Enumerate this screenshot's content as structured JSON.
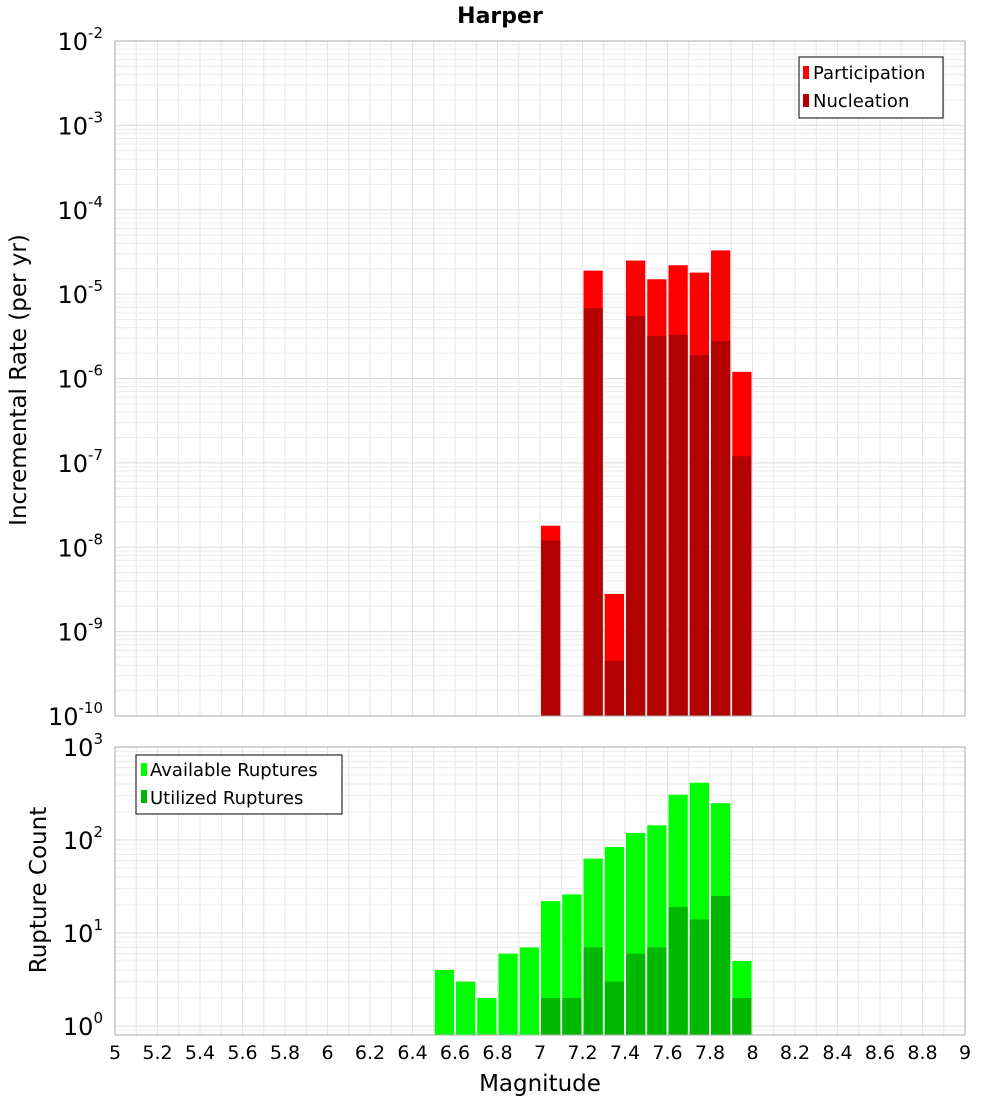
{
  "title": "Harper",
  "colors": {
    "participation": "#ff0000",
    "nucleation": "#b30000",
    "available": "#00ff00",
    "utilized": "#00b800",
    "grid": "#e4e4e4",
    "frame": "#aaaaaa"
  },
  "chart_data": [
    {
      "type": "bar",
      "title": "Harper",
      "ylabel": "Incremental Rate (per yr)",
      "xlabel": "",
      "yscale": "log",
      "ylim": [
        1e-10,
        0.01
      ],
      "xlim": [
        5,
        9
      ],
      "bin_width": 0.1,
      "y_ticks": [
        {
          "base": "10",
          "exp": "-10",
          "value": 1e-10
        },
        {
          "base": "10",
          "exp": "-9",
          "value": 1e-09
        },
        {
          "base": "10",
          "exp": "-8",
          "value": 1e-08
        },
        {
          "base": "10",
          "exp": "-7",
          "value": 1e-07
        },
        {
          "base": "10",
          "exp": "-6",
          "value": 1e-06
        },
        {
          "base": "10",
          "exp": "-5",
          "value": 1e-05
        },
        {
          "base": "10",
          "exp": "-4",
          "value": 0.0001
        },
        {
          "base": "10",
          "exp": "-3",
          "value": 0.001
        },
        {
          "base": "10",
          "exp": "-2",
          "value": 0.01
        }
      ],
      "legend": {
        "position": "top-right",
        "entries": [
          "Participation",
          "Nucleation"
        ]
      },
      "series": [
        {
          "name": "Participation",
          "x": [
            7.05,
            7.25,
            7.35,
            7.45,
            7.55,
            7.65,
            7.75,
            7.85,
            7.95
          ],
          "values": [
            1.8e-08,
            1.9e-05,
            2.8e-09,
            2.5e-05,
            1.5e-05,
            2.2e-05,
            1.8e-05,
            3.3e-05,
            1.2e-06
          ]
        },
        {
          "name": "Nucleation",
          "x": [
            7.05,
            7.25,
            7.35,
            7.45,
            7.55,
            7.65,
            7.75,
            7.85,
            7.95
          ],
          "values": [
            1.2e-08,
            6.8e-06,
            4.5e-10,
            5.5e-06,
            3.2e-06,
            3.3e-06,
            1.9e-06,
            2.8e-06,
            1.2e-07
          ]
        }
      ]
    },
    {
      "type": "bar",
      "title": "",
      "ylabel": "Rupture Count",
      "xlabel": "Magnitude",
      "yscale": "log",
      "ylim": [
        0.8,
        1000
      ],
      "xlim": [
        5,
        9
      ],
      "bin_width": 0.1,
      "x_ticks": [
        "5",
        "5.2",
        "5.4",
        "5.6",
        "5.8",
        "6",
        "6.2",
        "6.4",
        "6.6",
        "6.8",
        "7",
        "7.2",
        "7.4",
        "7.6",
        "7.8",
        "8",
        "8.2",
        "8.4",
        "8.6",
        "8.8",
        "9"
      ],
      "y_ticks": [
        {
          "base": "10",
          "exp": "0",
          "value": 1
        },
        {
          "base": "10",
          "exp": "1",
          "value": 10
        },
        {
          "base": "10",
          "exp": "2",
          "value": 100
        },
        {
          "base": "10",
          "exp": "3",
          "value": 1000
        }
      ],
      "legend": {
        "position": "top-left",
        "entries": [
          "Available Ruptures",
          "Utilized Ruptures"
        ]
      },
      "series": [
        {
          "name": "Available Ruptures",
          "x": [
            6.55,
            6.65,
            6.75,
            6.85,
            6.95,
            7.05,
            7.15,
            7.25,
            7.35,
            7.45,
            7.55,
            7.65,
            7.75,
            7.85,
            7.95
          ],
          "values": [
            4,
            3,
            2,
            6,
            7,
            22,
            26,
            63,
            84,
            119,
            144,
            307,
            413,
            249,
            5
          ]
        },
        {
          "name": "Utilized Ruptures",
          "x": [
            7.05,
            7.15,
            7.25,
            7.35,
            7.45,
            7.55,
            7.65,
            7.75,
            7.85,
            7.95
          ],
          "values": [
            2,
            2,
            7,
            3,
            6,
            7,
            19,
            14,
            25,
            2
          ]
        }
      ]
    }
  ]
}
